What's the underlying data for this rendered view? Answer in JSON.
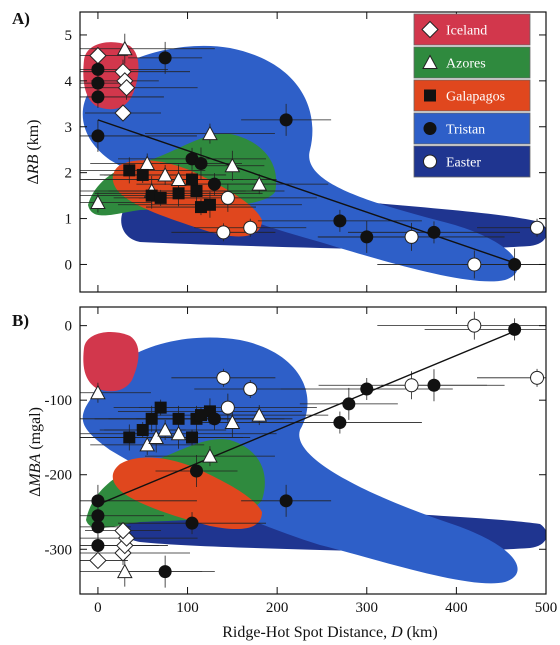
{
  "chart_data": [
    {
      "panel": "A)",
      "type": "scatter",
      "xlabel": "",
      "ylabel_prefix": "Δ",
      "ylabel_italic": "RB",
      "ylabel_suffix": " (km)",
      "xlim": [
        -20,
        500
      ],
      "ylim": [
        -0.6,
        5.5
      ],
      "xticks": [
        0,
        100,
        200,
        300,
        400,
        500
      ],
      "yticks": [
        0,
        1,
        2,
        3,
        4,
        5
      ],
      "ytick_labels": [
        "0",
        "1",
        "2",
        "3",
        "4",
        "5"
      ],
      "grid": false,
      "legend_position": "top-right",
      "trend_line": [
        [
          0,
          3.15
        ],
        [
          470,
          0.0
        ]
      ],
      "series": [
        {
          "name": "Iceland",
          "marker": "diamond",
          "color": "#d2374c",
          "points": [
            [
              0,
              4.55
            ],
            [
              28,
              4.2
            ],
            [
              30,
              4.0
            ],
            [
              32,
              3.85
            ],
            [
              28,
              3.3
            ]
          ]
        },
        {
          "name": "Azores",
          "marker": "triangle",
          "color": "#2f8a3e",
          "points": [
            [
              0,
              1.35
            ],
            [
              30,
              4.7
            ],
            [
              55,
              2.2
            ],
            [
              60,
              1.6
            ],
            [
              75,
              1.95
            ],
            [
              90,
              1.85
            ],
            [
              125,
              2.85
            ],
            [
              150,
              2.15
            ],
            [
              180,
              1.75
            ]
          ]
        },
        {
          "name": "Galapagos",
          "marker": "square",
          "color": "#e0471e",
          "points": [
            [
              35,
              2.05
            ],
            [
              50,
              1.95
            ],
            [
              60,
              1.5
            ],
            [
              70,
              1.45
            ],
            [
              90,
              1.55
            ],
            [
              105,
              1.85
            ],
            [
              110,
              1.6
            ],
            [
              115,
              1.25
            ],
            [
              125,
              1.3
            ]
          ]
        },
        {
          "name": "Tristan",
          "marker": "circle",
          "color": "#2e5fc8",
          "points": [
            [
              0,
              2.8
            ],
            [
              0,
              3.65
            ],
            [
              0,
              3.95
            ],
            [
              0,
              4.25
            ],
            [
              75,
              4.5
            ],
            [
              105,
              2.3
            ],
            [
              115,
              2.2
            ],
            [
              130,
              1.75
            ],
            [
              210,
              3.15
            ],
            [
              270,
              0.95
            ],
            [
              300,
              0.6
            ],
            [
              375,
              0.7
            ],
            [
              465,
              0.0
            ]
          ]
        },
        {
          "name": "Easter",
          "marker": "circle-open",
          "color": "#1f3590",
          "points": [
            [
              140,
              0.7
            ],
            [
              145,
              1.45
            ],
            [
              170,
              0.8
            ],
            [
              350,
              0.6
            ],
            [
              490,
              0.8
            ],
            [
              420,
              0.0
            ]
          ]
        }
      ]
    },
    {
      "panel": "B)",
      "type": "scatter",
      "xlabel_prefix": "Ridge-Hot Spot Distance, ",
      "xlabel_italic": "D",
      "xlabel_suffix": " (km)",
      "ylabel_prefix": "Δ",
      "ylabel_italic": "MBA",
      "ylabel_suffix": "  (mgal)",
      "xlim": [
        -20,
        500
      ],
      "ylim": [
        -360,
        25
      ],
      "xticks": [
        0,
        100,
        200,
        300,
        400,
        500
      ],
      "xtick_labels": [
        "0",
        "100",
        "200",
        "300",
        "400",
        "500"
      ],
      "yticks": [
        0,
        -100,
        -200,
        -300
      ],
      "ytick_labels": [
        "0",
        "-100",
        "-200",
        "-300"
      ],
      "grid": false,
      "trend_line": [
        [
          0,
          -240
        ],
        [
          470,
          -5
        ]
      ],
      "series": [
        {
          "name": "Iceland",
          "marker": "diamond",
          "color": "#d2374c",
          "points": [
            [
              0,
              -315
            ],
            [
              28,
              -305
            ],
            [
              30,
              -295
            ],
            [
              32,
              -285
            ],
            [
              28,
              -275
            ]
          ]
        },
        {
          "name": "Azores",
          "marker": "triangle",
          "color": "#2f8a3e",
          "points": [
            [
              0,
              -90
            ],
            [
              30,
              -330
            ],
            [
              55,
              -160
            ],
            [
              65,
              -150
            ],
            [
              75,
              -140
            ],
            [
              90,
              -145
            ],
            [
              125,
              -175
            ],
            [
              150,
              -130
            ],
            [
              180,
              -120
            ]
          ]
        },
        {
          "name": "Galapagos",
          "marker": "square",
          "color": "#e0471e",
          "points": [
            [
              35,
              -150
            ],
            [
              50,
              -140
            ],
            [
              60,
              -125
            ],
            [
              70,
              -110
            ],
            [
              90,
              -125
            ],
            [
              105,
              -150
            ],
            [
              110,
              -125
            ],
            [
              115,
              -120
            ],
            [
              125,
              -115
            ]
          ]
        },
        {
          "name": "Tristan",
          "marker": "circle",
          "color": "#2e5fc8",
          "points": [
            [
              0,
              -235
            ],
            [
              0,
              -255
            ],
            [
              0,
              -270
            ],
            [
              0,
              -295
            ],
            [
              75,
              -330
            ],
            [
              105,
              -265
            ],
            [
              110,
              -195
            ],
            [
              130,
              -125
            ],
            [
              210,
              -235
            ],
            [
              270,
              -130
            ],
            [
              280,
              -105
            ],
            [
              300,
              -85
            ],
            [
              375,
              -80
            ],
            [
              465,
              -5
            ]
          ]
        },
        {
          "name": "Easter",
          "marker": "circle-open",
          "color": "#1f3590",
          "points": [
            [
              140,
              -70
            ],
            [
              145,
              -110
            ],
            [
              170,
              -85
            ],
            [
              350,
              -80
            ],
            [
              490,
              -70
            ],
            [
              420,
              0
            ]
          ]
        }
      ]
    }
  ]
}
